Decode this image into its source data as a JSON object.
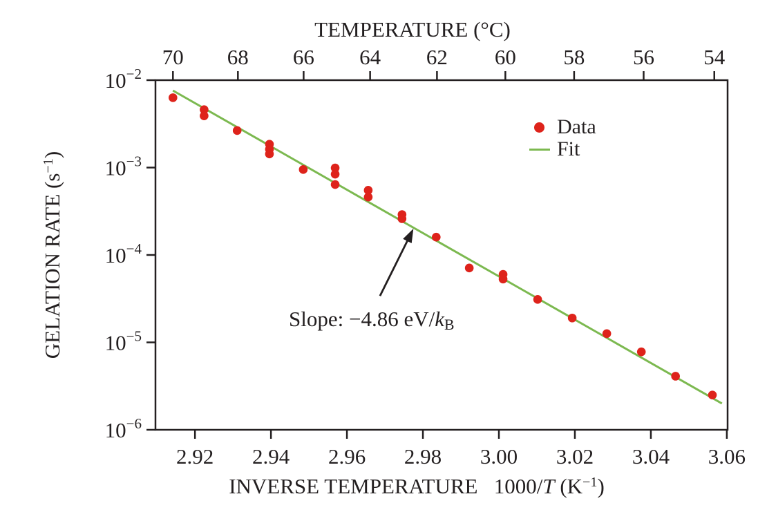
{
  "chart_data": {
    "type": "scatter",
    "top_axis": {
      "title": "TEMPERATURE (°C)",
      "ticks": [
        70,
        68,
        66,
        64,
        62,
        60,
        58,
        56,
        54
      ],
      "tick_positions_x": [
        2.9142,
        2.9313,
        2.9486,
        2.9661,
        2.9837,
        3.0017,
        3.0198,
        3.0381,
        3.0567
      ]
    },
    "x_axis": {
      "label_parts": {
        "pre": "INVERSE TEMPERATURE   1000/",
        "italic": "T",
        "mid": " (K",
        "sup": "−1",
        "post": ")"
      },
      "range": [
        2.9096,
        3.0602
      ],
      "ticks": [
        2.92,
        2.94,
        2.96,
        2.98,
        3.0,
        3.02,
        3.04,
        3.06
      ],
      "tick_labels": [
        "2.92",
        "2.94",
        "2.96",
        "2.98",
        "3.00",
        "3.02",
        "3.04",
        "3.06"
      ]
    },
    "y_axis": {
      "label_parts": {
        "pre": "GELATION RATE (s",
        "sup": "−1",
        "post": ")"
      },
      "scale": "log",
      "base": "10",
      "exp_range": [
        -2,
        -6
      ],
      "tick_exponents": [
        "−2",
        "−3",
        "−4",
        "−5",
        "−6"
      ]
    },
    "series": [
      {
        "name": "Data",
        "type": "scatter",
        "color": "#de231b",
        "points": [
          [
            2.9142,
            0.0063
          ],
          [
            2.9224,
            0.0046
          ],
          [
            2.9224,
            0.0039
          ],
          [
            2.9311,
            0.00265
          ],
          [
            2.9396,
            0.00185
          ],
          [
            2.9396,
            0.00162
          ],
          [
            2.9396,
            0.00143
          ],
          [
            2.9485,
            0.00095
          ],
          [
            2.9569,
            0.00099
          ],
          [
            2.9569,
            0.00084
          ],
          [
            2.9569,
            0.00064
          ],
          [
            2.9656,
            0.00055
          ],
          [
            2.9656,
            0.00046
          ],
          [
            2.9745,
            0.00029
          ],
          [
            2.9745,
            0.00026
          ],
          [
            2.9835,
            0.00016
          ],
          [
            2.9922,
            7.1e-05
          ],
          [
            3.0011,
            6e-05
          ],
          [
            3.0011,
            5.3e-05
          ],
          [
            3.0102,
            3.1e-05
          ],
          [
            3.0193,
            1.9e-05
          ],
          [
            3.0284,
            1.26e-05
          ],
          [
            3.0375,
            7.8e-06
          ],
          [
            3.0465,
            4.1e-06
          ],
          [
            3.0562,
            2.5e-06
          ]
        ]
      },
      {
        "name": "Fit",
        "type": "line",
        "color": "#7cb950",
        "points": [
          [
            2.9142,
            0.0076
          ],
          [
            3.0587,
            2e-06
          ]
        ]
      }
    ],
    "legend": {
      "position": "upper right",
      "data_label": "Data",
      "fit_label": "Fit"
    },
    "annotation": {
      "text_parts": {
        "pre": "Slope: −4.86 eV/",
        "italic": "k",
        "sub": "B"
      },
      "arrow_tail": [
        2.9687,
        3.4e-05
      ],
      "arrow_tip": [
        2.9775,
        0.0002
      ]
    },
    "colors": {
      "axis": "#231f20",
      "background": "#ffffff"
    }
  }
}
